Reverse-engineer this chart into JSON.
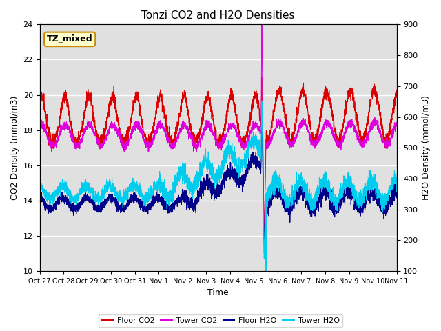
{
  "title": "Tonzi CO2 and H2O Densities",
  "xlabel": "Time",
  "ylabel_left": "CO2 Density (mmol/m3)",
  "ylabel_right": "H2O Density (mmol/m3)",
  "ylim_left": [
    10,
    24
  ],
  "ylim_right": [
    100,
    900
  ],
  "xtick_labels": [
    "Oct 27",
    "Oct 28",
    "Oct 29",
    "Oct 30",
    "Oct 31",
    "Nov 1",
    "Nov 2",
    "Nov 3",
    "Nov 4",
    "Nov 5",
    "Nov 6",
    "Nov 7",
    "Nov 8",
    "Nov 9",
    "Nov 10",
    "Nov 11"
  ],
  "annotation_text": "TZ_mixed",
  "annotation_edgecolor": "#cc8800",
  "annotation_facecolor": "#ffffcc",
  "bg_color": "#e0e0e0",
  "floor_co2_color": "#dd0000",
  "tower_co2_color": "#dd00dd",
  "floor_h2o_color": "#000088",
  "tower_h2o_color": "#00ccee",
  "legend_labels": [
    "Floor CO2",
    "Tower CO2",
    "Floor H2O",
    "Tower H2O"
  ],
  "n_points": 3360,
  "yticks_left": [
    10,
    12,
    14,
    16,
    18,
    20,
    22,
    24
  ],
  "yticks_right": [
    100,
    200,
    300,
    400,
    500,
    600,
    700,
    800,
    900
  ]
}
